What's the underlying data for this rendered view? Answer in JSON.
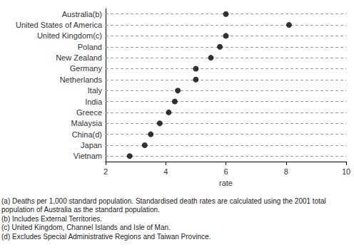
{
  "chart_data": {
    "type": "scatter",
    "orientation": "horizontal",
    "x_label": "rate",
    "categories": [
      "Australia(b)",
      "United States of America",
      "United Kingdom(c)",
      "Poland",
      "New Zealand",
      "Germany",
      "Netherlands",
      "Italy",
      "India",
      "Greece",
      "Malaysia",
      "China(d)",
      "Japan",
      "Vietnam"
    ],
    "values": [
      6.0,
      8.1,
      6.0,
      5.8,
      5.5,
      5.0,
      5.0,
      4.4,
      4.3,
      4.1,
      3.8,
      3.5,
      3.3,
      2.8
    ],
    "color": "#000000",
    "marker": "circle",
    "xlim": [
      2,
      10
    ],
    "xticks": [
      2,
      4,
      6,
      8,
      10
    ],
    "grid": true,
    "annotations": [
      "(a) Deaths per 1,000 standard population. Standardised death rates are calculated using the 2001 total population of Australia as the standard population.",
      "(b) Includes External Territories.",
      "(c) United Kingdom, Channel Islands and Isle of Man.",
      "(d) Excludes Special Administrative Regions and Taiwan Province."
    ]
  }
}
